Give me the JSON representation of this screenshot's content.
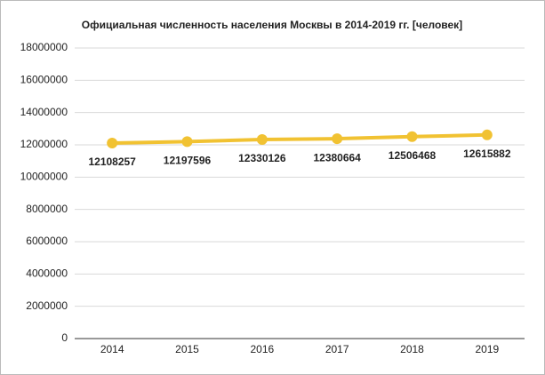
{
  "chart_data": {
    "type": "line",
    "title": "Официальная численность населения Москвы в 2014-2019 гг. [человек]",
    "categories": [
      "2014",
      "2015",
      "2016",
      "2017",
      "2018",
      "2019"
    ],
    "values": [
      12108257,
      12197596,
      12330126,
      12380664,
      12506468,
      12615882
    ],
    "color": "#f1c232",
    "ylim": [
      0,
      18000000
    ],
    "yticks": [
      0,
      2000000,
      4000000,
      6000000,
      8000000,
      10000000,
      12000000,
      14000000,
      16000000,
      18000000
    ],
    "grid": true
  }
}
